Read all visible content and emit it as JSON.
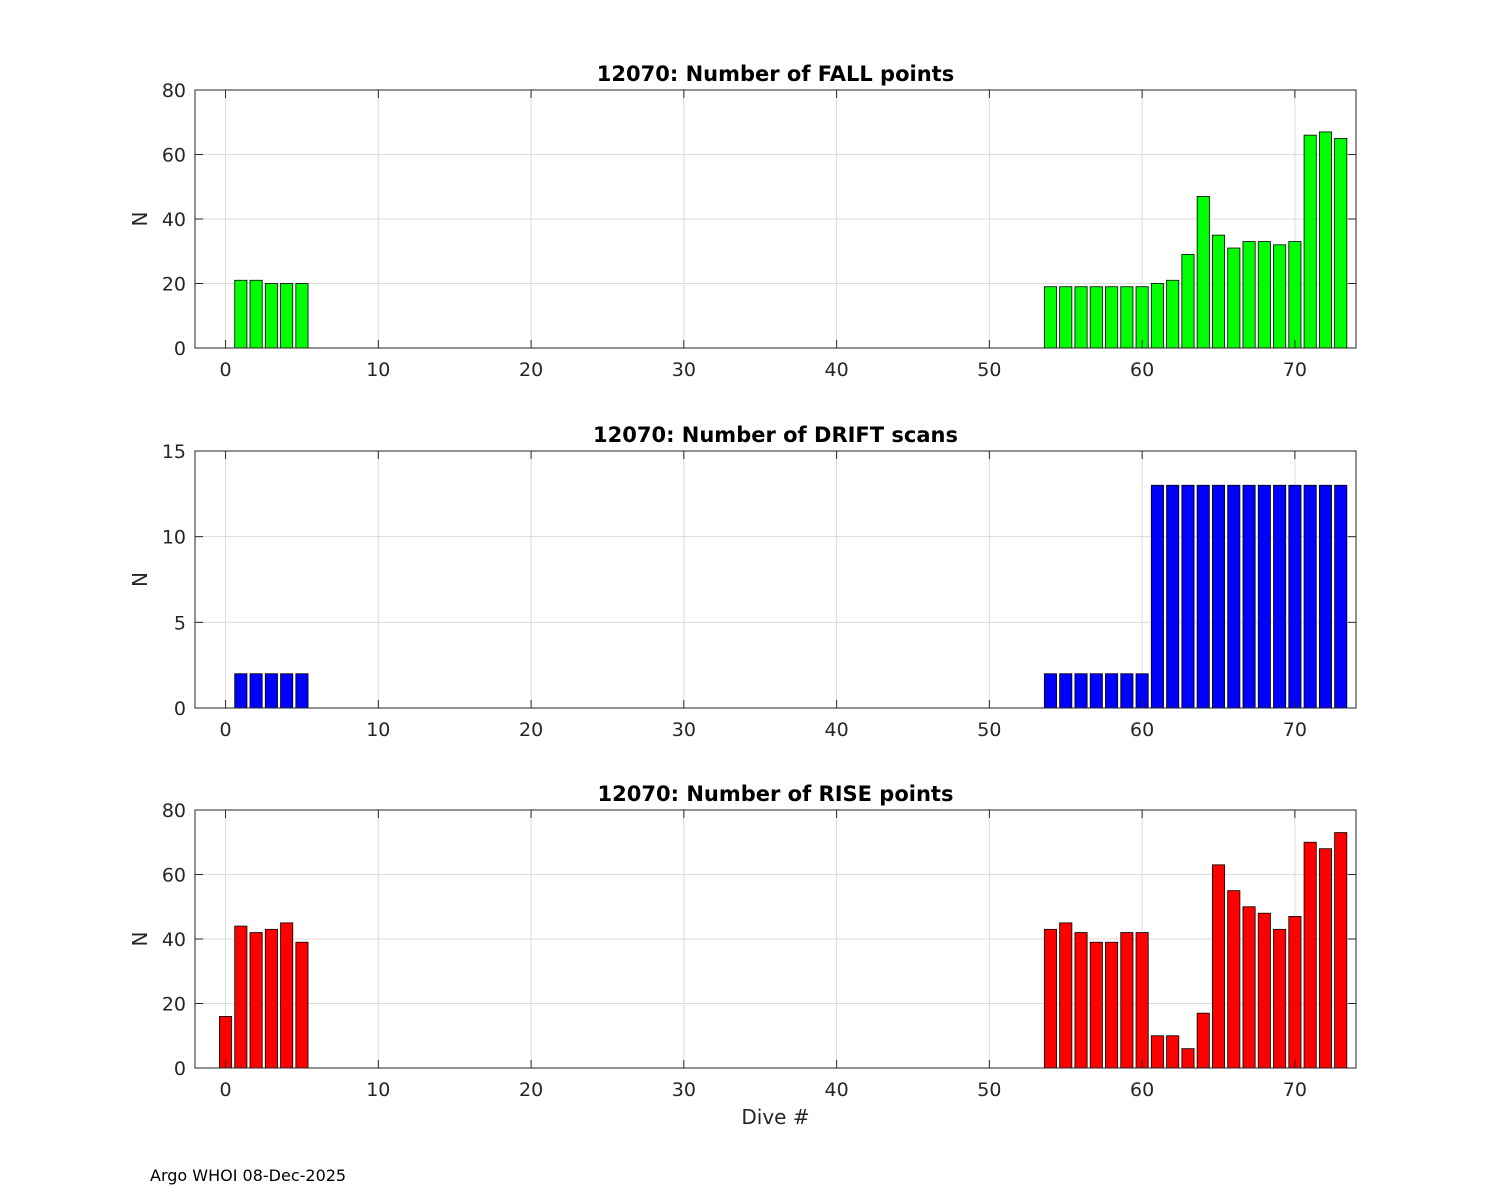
{
  "footer": "Argo WHOI 08-Dec-2025",
  "colors": {
    "fall": "#00ff00",
    "drift": "#0000ff",
    "rise": "#ff0000",
    "edge": "#000000",
    "grid": "#dcdcdc"
  },
  "chart_data": [
    {
      "type": "bar",
      "title": "12070: Number of FALL points",
      "xlabel": "",
      "ylabel": "N",
      "xlim": [
        -2,
        74
      ],
      "ylim": [
        0,
        80
      ],
      "xticks": [
        0,
        10,
        20,
        30,
        40,
        50,
        60,
        70
      ],
      "yticks": [
        0,
        20,
        40,
        60,
        80
      ],
      "grid": true,
      "color": "#00ff00",
      "series": [
        {
          "x": [
            1,
            2,
            3,
            4,
            5,
            54,
            55,
            56,
            57,
            58,
            59,
            60,
            61,
            62,
            63,
            64,
            65,
            66,
            67,
            68,
            69,
            70,
            71,
            72,
            73
          ],
          "values": [
            21,
            21,
            20,
            20,
            20,
            19,
            19,
            19,
            19,
            19,
            19,
            19,
            20,
            21,
            29,
            47,
            35,
            31,
            33,
            33,
            32,
            33,
            66,
            67,
            65
          ]
        }
      ]
    },
    {
      "type": "bar",
      "title": "12070: Number of DRIFT scans",
      "xlabel": "",
      "ylabel": "N",
      "xlim": [
        -2,
        74
      ],
      "ylim": [
        0,
        15
      ],
      "xticks": [
        0,
        10,
        20,
        30,
        40,
        50,
        60,
        70
      ],
      "yticks": [
        0,
        5,
        10,
        15
      ],
      "grid": true,
      "color": "#0000ff",
      "series": [
        {
          "x": [
            -1,
            0,
            1,
            2,
            3,
            4,
            5,
            6,
            7,
            8,
            9,
            10,
            11,
            12,
            13,
            14,
            15,
            16,
            17,
            18,
            19,
            20,
            21,
            22,
            23,
            24,
            25,
            26,
            27,
            28,
            29,
            30,
            31,
            32,
            33,
            34,
            35,
            36,
            37,
            38,
            39,
            40,
            41,
            42,
            45,
            46,
            47,
            48,
            49,
            50,
            51,
            52,
            54,
            55,
            56,
            57,
            58,
            59,
            60,
            61,
            62,
            63,
            64,
            65,
            66,
            67,
            68,
            69,
            70,
            71,
            72,
            73
          ],
          "values": [
            0,
            0,
            2,
            2,
            2,
            2,
            2,
            0,
            0,
            0,
            0,
            0,
            0,
            0,
            0,
            0,
            0,
            0,
            0,
            0,
            0,
            0,
            0,
            0,
            0,
            0,
            0,
            0,
            0,
            0,
            0,
            0,
            0,
            0,
            0,
            0,
            0,
            0,
            0,
            0,
            0,
            0,
            0,
            0,
            0,
            0,
            0,
            0,
            0,
            0,
            0,
            0,
            2,
            2,
            2,
            2,
            2,
            2,
            2,
            13,
            13,
            13,
            13,
            13,
            13,
            13,
            13,
            13,
            13,
            13,
            13,
            13
          ]
        }
      ]
    },
    {
      "type": "bar",
      "title": "12070: Number of RISE points",
      "xlabel": "Dive #",
      "ylabel": "N",
      "xlim": [
        -2,
        74
      ],
      "ylim": [
        0,
        80
      ],
      "xticks": [
        0,
        10,
        20,
        30,
        40,
        50,
        60,
        70
      ],
      "yticks": [
        0,
        20,
        40,
        60,
        80
      ],
      "grid": true,
      "color": "#ff0000",
      "series": [
        {
          "x": [
            0,
            1,
            2,
            3,
            4,
            5,
            54,
            55,
            56,
            57,
            58,
            59,
            60,
            61,
            62,
            63,
            64,
            65,
            66,
            67,
            68,
            69,
            70,
            71,
            72,
            73
          ],
          "values": [
            16,
            44,
            42,
            43,
            45,
            39,
            43,
            45,
            42,
            39,
            39,
            42,
            42,
            10,
            10,
            6,
            17,
            63,
            55,
            50,
            48,
            43,
            47,
            70,
            68,
            73
          ]
        }
      ]
    }
  ]
}
